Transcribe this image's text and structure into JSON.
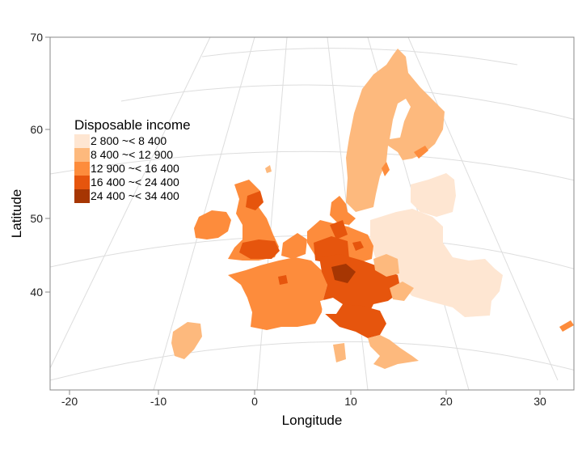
{
  "map": {
    "x_axis": {
      "title": "Longitude",
      "ticks": [
        "-20",
        "-10",
        "0",
        "10",
        "20",
        "30"
      ],
      "values": [
        -20,
        -10,
        0,
        10,
        20,
        30
      ],
      "range": [
        -22,
        33
      ]
    },
    "y_axis": {
      "title": "Latitude",
      "ticks": [
        "40",
        "50",
        "60",
        "70"
      ],
      "values": [
        40,
        50,
        60,
        70
      ],
      "range": [
        29,
        70
      ]
    },
    "legend": {
      "title": "Disposable income",
      "placement": "left",
      "classes": [
        {
          "label": "2 800 ~< 8 400",
          "color": "#fee6d2"
        },
        {
          "label": "8 400 ~< 12 900",
          "color": "#fdb97d"
        },
        {
          "label": "12 900 ~< 16 400",
          "color": "#fd8c3c"
        },
        {
          "label": "16 400 ~< 24 400",
          "color": "#e6550d"
        },
        {
          "label": "24 400 ~< 34 400",
          "color": "#a63603"
        }
      ]
    }
  }
}
